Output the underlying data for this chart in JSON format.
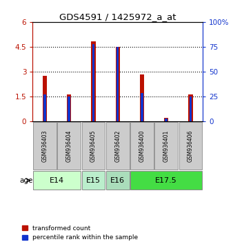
{
  "title": "GDS4591 / 1425972_a_at",
  "samples": [
    "GSM936403",
    "GSM936404",
    "GSM936405",
    "GSM936402",
    "GSM936400",
    "GSM936401",
    "GSM936406"
  ],
  "transformed_count": [
    2.75,
    1.65,
    4.85,
    4.5,
    2.85,
    0.22,
    1.62
  ],
  "percentile_rank_pct": [
    27,
    25,
    78,
    75,
    29,
    3,
    25
  ],
  "ylim_left": [
    0,
    6
  ],
  "ylim_right": [
    0,
    100
  ],
  "yticks_left": [
    0,
    1.5,
    3.0,
    4.5,
    6
  ],
  "ytick_labels_left": [
    "0",
    "1.5",
    "3",
    "4.5",
    "6"
  ],
  "yticks_right": [
    0,
    25,
    50,
    75,
    100
  ],
  "ytick_labels_right": [
    "0",
    "25",
    "50",
    "75",
    "100%"
  ],
  "bar_color_red": "#bb1100",
  "bar_color_blue": "#1133cc",
  "background_plot": "#ffffff",
  "age_spans": [
    {
      "label": "E14",
      "start": 0,
      "end": 1,
      "color": "#ccffcc"
    },
    {
      "label": "E15",
      "start": 2,
      "end": 2,
      "color": "#bbeecc"
    },
    {
      "label": "E16",
      "start": 3,
      "end": 3,
      "color": "#aaddbb"
    },
    {
      "label": "E17.5",
      "start": 4,
      "end": 6,
      "color": "#44dd44"
    }
  ]
}
